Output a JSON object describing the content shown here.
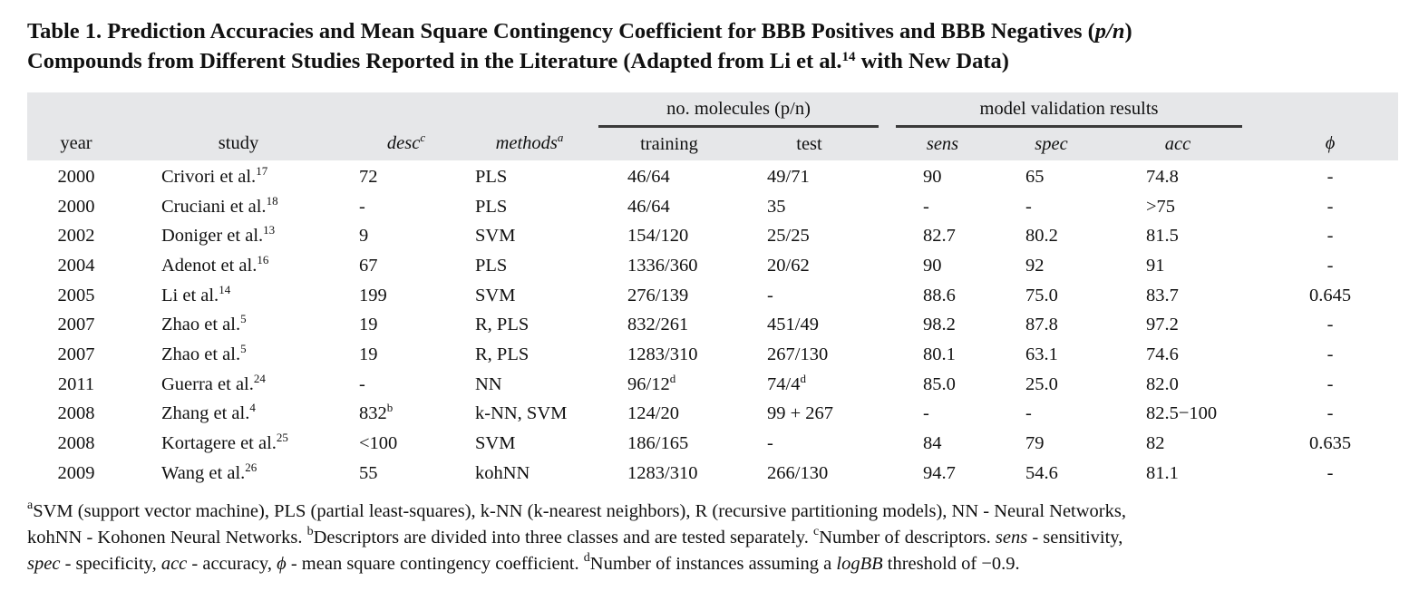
{
  "caption": {
    "line1_a": "Table 1. Prediction Accuracies and Mean Square Contingency Coefficient for BBB Positives and BBB Negatives (",
    "line1_pn": "p/n",
    "line1_b": ")",
    "line2_a": "Compounds from Different Studies Reported in the Literature (Adapted from Li et al.",
    "line2_ref": "14",
    "line2_b": " with New Data)"
  },
  "header": {
    "group_molecules": "no. molecules (p/n)",
    "group_validation": "model validation results",
    "year": "year",
    "study": "study",
    "desc": "desc",
    "desc_note": "c",
    "methods": "methods",
    "methods_note": "a",
    "training": "training",
    "test": "test",
    "sens": "sens",
    "spec": "spec",
    "acc": "acc",
    "phi": "ϕ"
  },
  "rows": [
    {
      "year": "2000",
      "study": "Crivori et al.",
      "ref": "17",
      "desc": "72",
      "desc_note": "",
      "methods": "PLS",
      "training": "46/64",
      "training_note": "",
      "test": "49/71",
      "test_note": "",
      "sens": "90",
      "spec": "65",
      "acc": "74.8",
      "phi": "-"
    },
    {
      "year": "2000",
      "study": "Cruciani et al.",
      "ref": "18",
      "desc": "-",
      "desc_note": "",
      "methods": "PLS",
      "training": "46/64",
      "training_note": "",
      "test": "35",
      "test_note": "",
      "sens": "-",
      "spec": "-",
      "acc": ">75",
      "phi": "-"
    },
    {
      "year": "2002",
      "study": "Doniger et al.",
      "ref": "13",
      "desc": "9",
      "desc_note": "",
      "methods": "SVM",
      "training": "154/120",
      "training_note": "",
      "test": "25/25",
      "test_note": "",
      "sens": "82.7",
      "spec": "80.2",
      "acc": "81.5",
      "phi": "-"
    },
    {
      "year": "2004",
      "study": "Adenot et al.",
      "ref": "16",
      "desc": "67",
      "desc_note": "",
      "methods": "PLS",
      "training": "1336/360",
      "training_note": "",
      "test": "20/62",
      "test_note": "",
      "sens": "90",
      "spec": "92",
      "acc": "91",
      "phi": "-"
    },
    {
      "year": "2005",
      "study": "Li et al.",
      "ref": "14",
      "desc": "199",
      "desc_note": "",
      "methods": "SVM",
      "training": "276/139",
      "training_note": "",
      "test": "-",
      "test_note": "",
      "sens": "88.6",
      "spec": "75.0",
      "acc": "83.7",
      "phi": "0.645"
    },
    {
      "year": "2007",
      "study": "Zhao et al.",
      "ref": "5",
      "desc": "19",
      "desc_note": "",
      "methods": "R, PLS",
      "training": "832/261",
      "training_note": "",
      "test": "451/49",
      "test_note": "",
      "sens": "98.2",
      "spec": "87.8",
      "acc": "97.2",
      "phi": "-"
    },
    {
      "year": "2007",
      "study": "Zhao et al.",
      "ref": "5",
      "desc": "19",
      "desc_note": "",
      "methods": "R, PLS",
      "training": "1283/310",
      "training_note": "",
      "test": "267/130",
      "test_note": "",
      "sens": "80.1",
      "spec": "63.1",
      "acc": "74.6",
      "phi": "-"
    },
    {
      "year": "2011",
      "study": "Guerra et al.",
      "ref": "24",
      "desc": "-",
      "desc_note": "",
      "methods": "NN",
      "training": "96/12",
      "training_note": "d",
      "test": "74/4",
      "test_note": "d",
      "sens": "85.0",
      "spec": "25.0",
      "acc": "82.0",
      "phi": "-"
    },
    {
      "year": "2008",
      "study": "Zhang et al.",
      "ref": "4",
      "desc": "832",
      "desc_note": "b",
      "methods": "k-NN, SVM",
      "training": "124/20",
      "training_note": "",
      "test": "99 + 267",
      "test_note": "",
      "sens": "-",
      "spec": "-",
      "acc": "82.5−100",
      "phi": "-"
    },
    {
      "year": "2008",
      "study": "Kortagere et al.",
      "ref": "25",
      "desc": "<100",
      "desc_note": "",
      "methods": "SVM",
      "training": "186/165",
      "training_note": "",
      "test": "-",
      "test_note": "",
      "sens": "84",
      "spec": "79",
      "acc": "82",
      "phi": "0.635"
    },
    {
      "year": "2009",
      "study": "Wang et al.",
      "ref": "26",
      "desc": "55",
      "desc_note": "",
      "methods": "kohNN",
      "training": "1283/310",
      "training_note": "",
      "test": "266/130",
      "test_note": "",
      "sens": "94.7",
      "spec": "54.6",
      "acc": "81.1",
      "phi": "-"
    }
  ],
  "footnotes": {
    "a_mark": "a",
    "a_text": "SVM (support vector machine), PLS (partial least-squares), k-NN (k-nearest neighbors), R (recursive partitioning models), NN - Neural Networks,",
    "a_text2": "kohNN - Kohonen Neural Networks. ",
    "b_mark": "b",
    "b_text": "Descriptors are divided into three classes and are tested separately. ",
    "c_mark": "c",
    "c_text": "Number of descriptors. ",
    "sens_term": "sens",
    "sens_def": " - sensitivity,",
    "spec_term": "spec",
    "spec_def": " - specificity, ",
    "acc_term": "acc",
    "acc_def": " - accuracy, ",
    "phi_term": "ϕ",
    "phi_def": " - mean square contingency coefficient. ",
    "d_mark": "d",
    "d_text": "Number of instances assuming a ",
    "logbb_term": "logBB",
    "d_text2": " threshold of −0.9."
  }
}
